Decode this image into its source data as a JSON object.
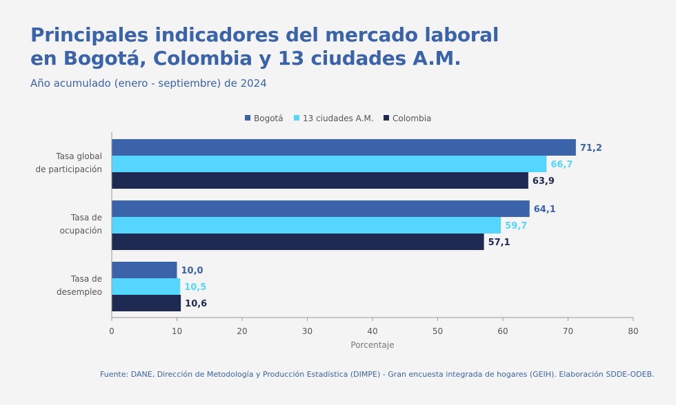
{
  "title_line1": "Principales indicadores del mercado laboral",
  "title_line2": "en Bogotá, Colombia y 13 ciudades A.M.",
  "subtitle": "Año acumulado (enero - septiembre) de 2024",
  "footer": "Fuente: DANE, Dirección de Metodología y Producción Estadística (DIMPE) - Gran encuesta integrada de hogares (GEIH). Elaboración SDDE-ODEB.",
  "colors": {
    "bogota": "#3a63aa",
    "ciudades": "#54d6ff",
    "colombia": "#1e2a52",
    "title": "#3a63aa"
  },
  "chart_data": {
    "type": "bar",
    "orientation": "horizontal",
    "categories": [
      [
        "Tasa global",
        "de participación"
      ],
      [
        "Tasa de",
        "ocupación"
      ],
      [
        "Tasa de",
        "desempleo"
      ]
    ],
    "series": [
      {
        "name": "Bogotá",
        "values": [
          71.2,
          64.1,
          10.0
        ],
        "labels": [
          "71,2",
          "64,1",
          "10,0"
        ],
        "color": "#3a63aa",
        "label_color": "#3a63aa"
      },
      {
        "name": "13 ciudades A.M.",
        "values": [
          66.7,
          59.7,
          10.5
        ],
        "labels": [
          "66,7",
          "59,7",
          "10,5"
        ],
        "color": "#54d6ff",
        "label_color": "#54d6ff"
      },
      {
        "name": "Colombia",
        "values": [
          63.9,
          57.1,
          10.6
        ],
        "labels": [
          "63,9",
          "57,1",
          "10,6"
        ],
        "color": "#1e2a52",
        "label_color": "#1e2a52"
      }
    ],
    "xlabel": "Porcentaje",
    "xlim": [
      0,
      80
    ],
    "xticks": [
      0,
      10,
      20,
      30,
      40,
      50,
      60,
      70,
      80
    ],
    "grid": false,
    "legend_position": "top"
  }
}
